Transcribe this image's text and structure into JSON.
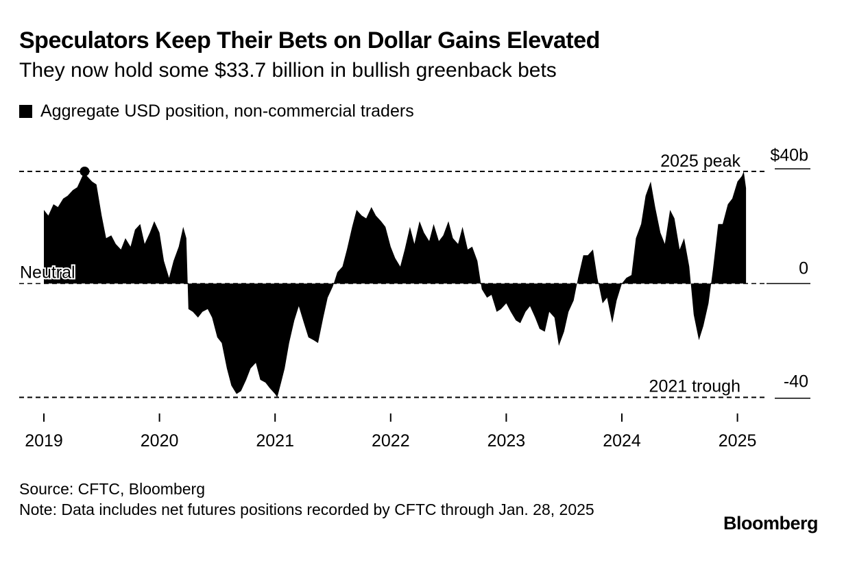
{
  "header": {
    "title": "Speculators Keep Their Bets on Dollar Gains Elevated",
    "subtitle": "They now hold some $33.7 billion in bullish greenback bets"
  },
  "legend": {
    "label": "Aggregate USD position, non-commercial traders",
    "color": "#000000"
  },
  "footer": {
    "source": "Source: CFTC, Bloomberg",
    "note": "Note: Data includes net futures positions recorded by CFTC through Jan. 28, 2025"
  },
  "brand": "Bloomberg",
  "chart_data": {
    "type": "area",
    "series": [
      {
        "name": "Aggregate USD position, non-commercial traders",
        "color": "#000000"
      }
    ],
    "y_ticks": [
      {
        "value": 40,
        "label": "$40b"
      },
      {
        "value": 0,
        "label": "0"
      },
      {
        "value": -40,
        "label": "-40"
      }
    ],
    "ylim": [
      -45,
      45
    ],
    "x_ticks": [
      "2019",
      "2020",
      "2021",
      "2022",
      "2023",
      "2024",
      "2025"
    ],
    "xlim": [
      "2018-12",
      "2025-05"
    ],
    "annotations": [
      {
        "label": "2025 peak",
        "value": 39.6
      },
      {
        "label": "Neutral",
        "value": 0
      },
      {
        "label": "2021 trough",
        "value": -40.2
      }
    ],
    "data": [
      [
        "2019-01-01",
        26
      ],
      [
        "2019-01-15",
        24
      ],
      [
        "2019-02-01",
        28
      ],
      [
        "2019-02-15",
        27
      ],
      [
        "2019-03-01",
        30
      ],
      [
        "2019-03-15",
        31
      ],
      [
        "2019-04-01",
        33
      ],
      [
        "2019-04-15",
        34
      ],
      [
        "2019-05-01",
        38
      ],
      [
        "2019-05-08",
        41
      ],
      [
        "2019-05-15",
        38
      ],
      [
        "2019-06-01",
        36
      ],
      [
        "2019-06-15",
        35
      ],
      [
        "2019-07-01",
        24
      ],
      [
        "2019-07-15",
        16
      ],
      [
        "2019-08-01",
        17
      ],
      [
        "2019-08-15",
        14
      ],
      [
        "2019-09-01",
        12
      ],
      [
        "2019-09-15",
        16
      ],
      [
        "2019-10-01",
        13
      ],
      [
        "2019-10-15",
        19
      ],
      [
        "2019-11-01",
        21
      ],
      [
        "2019-11-15",
        14
      ],
      [
        "2019-12-01",
        18
      ],
      [
        "2019-12-15",
        22
      ],
      [
        "2020-01-01",
        18
      ],
      [
        "2020-01-15",
        8
      ],
      [
        "2020-02-01",
        2
      ],
      [
        "2020-02-15",
        8
      ],
      [
        "2020-03-01",
        13
      ],
      [
        "2020-03-15",
        20
      ],
      [
        "2020-03-25",
        16
      ],
      [
        "2020-04-01",
        -9
      ],
      [
        "2020-04-15",
        -10
      ],
      [
        "2020-05-01",
        -12
      ],
      [
        "2020-05-15",
        -10
      ],
      [
        "2020-06-01",
        -9
      ],
      [
        "2020-06-15",
        -12
      ],
      [
        "2020-07-01",
        -19
      ],
      [
        "2020-07-15",
        -21
      ],
      [
        "2020-08-01",
        -30
      ],
      [
        "2020-08-15",
        -36
      ],
      [
        "2020-09-01",
        -39
      ],
      [
        "2020-09-15",
        -38
      ],
      [
        "2020-10-01",
        -34
      ],
      [
        "2020-10-15",
        -30
      ],
      [
        "2020-11-01",
        -28
      ],
      [
        "2020-11-15",
        -34
      ],
      [
        "2020-12-01",
        -35
      ],
      [
        "2020-12-15",
        -37
      ],
      [
        "2021-01-01",
        -39
      ],
      [
        "2021-01-08",
        -40.2
      ],
      [
        "2021-01-20",
        -35
      ],
      [
        "2021-02-01",
        -30
      ],
      [
        "2021-02-15",
        -21
      ],
      [
        "2021-03-01",
        -13
      ],
      [
        "2021-03-15",
        -8
      ],
      [
        "2021-04-01",
        -14
      ],
      [
        "2021-04-15",
        -19
      ],
      [
        "2021-05-01",
        -20
      ],
      [
        "2021-05-15",
        -21
      ],
      [
        "2021-06-01",
        -12
      ],
      [
        "2021-06-15",
        -5
      ],
      [
        "2021-07-01",
        -1
      ],
      [
        "2021-07-15",
        4
      ],
      [
        "2021-08-01",
        6
      ],
      [
        "2021-08-15",
        12
      ],
      [
        "2021-09-01",
        20
      ],
      [
        "2021-09-15",
        26
      ],
      [
        "2021-10-01",
        24
      ],
      [
        "2021-10-15",
        23
      ],
      [
        "2021-11-01",
        27
      ],
      [
        "2021-11-15",
        24
      ],
      [
        "2021-12-01",
        22
      ],
      [
        "2021-12-15",
        20
      ],
      [
        "2022-01-01",
        13
      ],
      [
        "2022-01-15",
        9
      ],
      [
        "2022-02-01",
        6
      ],
      [
        "2022-02-15",
        12
      ],
      [
        "2022-03-01",
        20
      ],
      [
        "2022-03-15",
        14
      ],
      [
        "2022-04-01",
        22
      ],
      [
        "2022-04-15",
        18
      ],
      [
        "2022-05-01",
        15
      ],
      [
        "2022-05-15",
        21
      ],
      [
        "2022-06-01",
        15
      ],
      [
        "2022-06-15",
        17
      ],
      [
        "2022-07-01",
        22
      ],
      [
        "2022-07-15",
        16
      ],
      [
        "2022-08-01",
        14
      ],
      [
        "2022-08-15",
        20
      ],
      [
        "2022-09-01",
        12
      ],
      [
        "2022-09-15",
        13
      ],
      [
        "2022-10-01",
        8
      ],
      [
        "2022-10-15",
        -2
      ],
      [
        "2022-11-01",
        -5
      ],
      [
        "2022-11-15",
        -4
      ],
      [
        "2022-12-01",
        -10
      ],
      [
        "2022-12-15",
        -9
      ],
      [
        "2023-01-01",
        -7
      ],
      [
        "2023-01-15",
        -10
      ],
      [
        "2023-02-01",
        -13
      ],
      [
        "2023-02-15",
        -14
      ],
      [
        "2023-03-01",
        -10
      ],
      [
        "2023-03-15",
        -8
      ],
      [
        "2023-04-01",
        -12
      ],
      [
        "2023-04-15",
        -16
      ],
      [
        "2023-05-01",
        -17
      ],
      [
        "2023-05-15",
        -10
      ],
      [
        "2023-06-01",
        -12
      ],
      [
        "2023-06-15",
        -22
      ],
      [
        "2023-07-01",
        -17
      ],
      [
        "2023-07-15",
        -10
      ],
      [
        "2023-08-01",
        -6
      ],
      [
        "2023-08-15",
        2
      ],
      [
        "2023-09-01",
        10
      ],
      [
        "2023-09-15",
        10
      ],
      [
        "2023-10-01",
        12
      ],
      [
        "2023-10-15",
        2
      ],
      [
        "2023-11-01",
        -7
      ],
      [
        "2023-11-15",
        -5
      ],
      [
        "2023-12-01",
        -14
      ],
      [
        "2023-12-15",
        -6
      ],
      [
        "2024-01-01",
        0
      ],
      [
        "2024-01-15",
        2
      ],
      [
        "2024-02-01",
        3
      ],
      [
        "2024-02-15",
        16
      ],
      [
        "2024-03-01",
        21
      ],
      [
        "2024-03-15",
        31
      ],
      [
        "2024-04-01",
        36
      ],
      [
        "2024-04-15",
        27
      ],
      [
        "2024-05-01",
        18
      ],
      [
        "2024-05-15",
        14
      ],
      [
        "2024-06-01",
        26
      ],
      [
        "2024-06-15",
        23
      ],
      [
        "2024-07-01",
        12
      ],
      [
        "2024-07-15",
        16
      ],
      [
        "2024-08-01",
        6
      ],
      [
        "2024-08-15",
        -11
      ],
      [
        "2024-09-01",
        -20
      ],
      [
        "2024-09-15",
        -15
      ],
      [
        "2024-10-01",
        -7
      ],
      [
        "2024-10-15",
        5
      ],
      [
        "2024-11-01",
        21
      ],
      [
        "2024-11-15",
        21
      ],
      [
        "2024-12-01",
        28
      ],
      [
        "2024-12-15",
        30
      ],
      [
        "2025-01-01",
        36
      ],
      [
        "2025-01-15",
        38
      ],
      [
        "2025-01-21",
        39.6
      ],
      [
        "2025-01-28",
        33.7
      ]
    ]
  }
}
